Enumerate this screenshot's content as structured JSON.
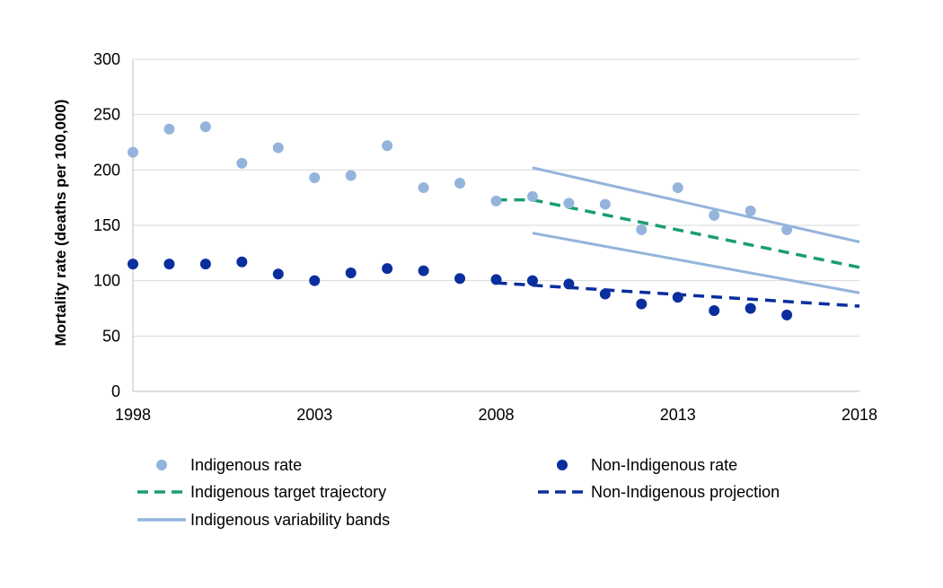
{
  "chart_data": {
    "type": "scatter",
    "title": "",
    "xlabel": "",
    "ylabel": "Mortality rate (deaths per 100,000)",
    "xlim": [
      1998,
      2018
    ],
    "ylim": [
      0,
      300
    ],
    "x_ticks": [
      "1998",
      "2003",
      "2008",
      "2013",
      "2018"
    ],
    "y_ticks": [
      "0",
      "50",
      "100",
      "150",
      "200",
      "250",
      "300"
    ],
    "grid": "horizontal",
    "legend_position": "bottom",
    "series": [
      {
        "name": "Indigenous rate",
        "kind": "scatter",
        "color": "#94b4dc",
        "x": [
          1998,
          1999,
          2000,
          2001,
          2002,
          2003,
          2004,
          2005,
          2006,
          2007,
          2008,
          2009,
          2010,
          2011,
          2012,
          2013,
          2014,
          2015,
          2016
        ],
        "y": [
          216,
          237,
          239,
          206,
          220,
          193,
          195,
          222,
          184,
          188,
          172,
          176,
          170,
          169,
          146,
          184,
          159,
          163,
          146
        ]
      },
      {
        "name": "Non-Indigenous rate",
        "kind": "scatter",
        "color": "#0a2e9e",
        "x": [
          1998,
          1999,
          2000,
          2001,
          2002,
          2003,
          2004,
          2005,
          2006,
          2007,
          2008,
          2009,
          2010,
          2011,
          2012,
          2013,
          2014,
          2015,
          2016
        ],
        "y": [
          115,
          115,
          115,
          117,
          106,
          100,
          107,
          111,
          109,
          102,
          101,
          100,
          97,
          88,
          79,
          85,
          73,
          75,
          69
        ]
      },
      {
        "name": "Indigenous target trajectory",
        "kind": "dashed-line",
        "color": "#1a9e6e",
        "x": [
          2008,
          2009,
          2018
        ],
        "y": [
          173,
          173,
          112
        ]
      },
      {
        "name": "Non-Indigenous projection",
        "kind": "dashed-line",
        "color": "#0a2e9e",
        "x": [
          2008,
          2018
        ],
        "y": [
          98,
          77
        ]
      },
      {
        "name": "Indigenous variability bands",
        "kind": "line",
        "color": "#94b4dc",
        "x": [
          2009,
          2018
        ],
        "y": [
          202,
          135
        ]
      },
      {
        "name": "",
        "kind": "line",
        "color": "#94b4dc",
        "x": [
          2009,
          2018
        ],
        "y": [
          143,
          89
        ]
      }
    ]
  },
  "legend": [
    {
      "label": "Indigenous rate",
      "kind": "dot",
      "color": "#94b4dc"
    },
    {
      "label": "Non-Indigenous rate",
      "kind": "dot",
      "color": "#0a2e9e"
    },
    {
      "label": "Indigenous target trajectory",
      "kind": "dash",
      "color": "#1a9e6e"
    },
    {
      "label": "Non-Indigenous projection",
      "kind": "dash",
      "color": "#0a2e9e"
    },
    {
      "label": "Indigenous variability bands",
      "kind": "line",
      "color": "#94b4dc"
    }
  ]
}
